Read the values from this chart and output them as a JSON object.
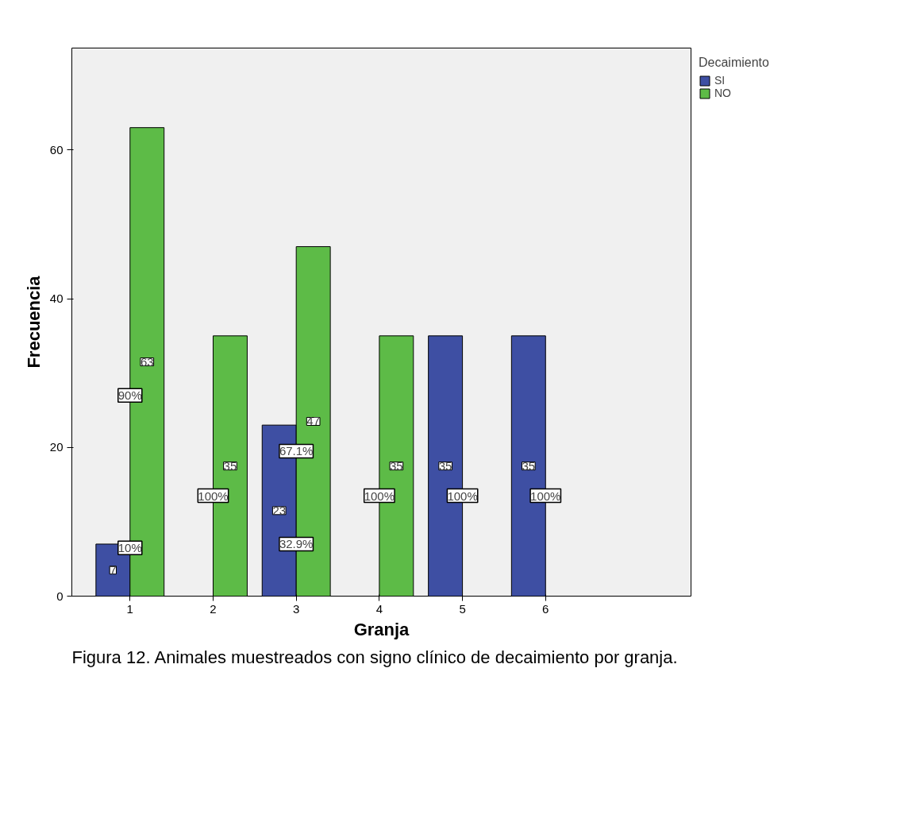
{
  "chart_data": {
    "type": "bar",
    "xlabel": "Granja",
    "ylabel": "Frecuencia",
    "legend_title": "Decaimiento",
    "categories": [
      "1",
      "2",
      "3",
      "4",
      "5",
      "6"
    ],
    "series": [
      {
        "name": "SI",
        "color": "#3e4fa3",
        "values": [
          7,
          null,
          23,
          null,
          35,
          35
        ]
      },
      {
        "name": "NO",
        "color": "#5dbb47",
        "values": [
          63,
          35,
          47,
          35,
          null,
          null
        ]
      }
    ],
    "ylim": [
      0,
      73.7
    ],
    "yticks": [
      0,
      20,
      40,
      60
    ],
    "grid": false,
    "legend": "top right",
    "data_labels": true,
    "annotations": [
      {
        "text": "10%",
        "x": "1",
        "y": 6.5
      },
      {
        "text": "90%",
        "x": "1",
        "y": 27
      },
      {
        "text": "100%",
        "x": "2",
        "y": 13.5
      },
      {
        "text": "32.9%",
        "x": "3",
        "y": 7
      },
      {
        "text": "67.1%",
        "x": "3",
        "y": 19.5
      },
      {
        "text": "100%",
        "x": "4",
        "y": 13.5
      },
      {
        "text": "100%",
        "x": "5",
        "y": 13.5
      },
      {
        "text": "100%",
        "x": "6",
        "y": 13.5
      },
      "Figura 12. Animales muestreados con signo clínico de decaimiento por granja."
    ]
  }
}
